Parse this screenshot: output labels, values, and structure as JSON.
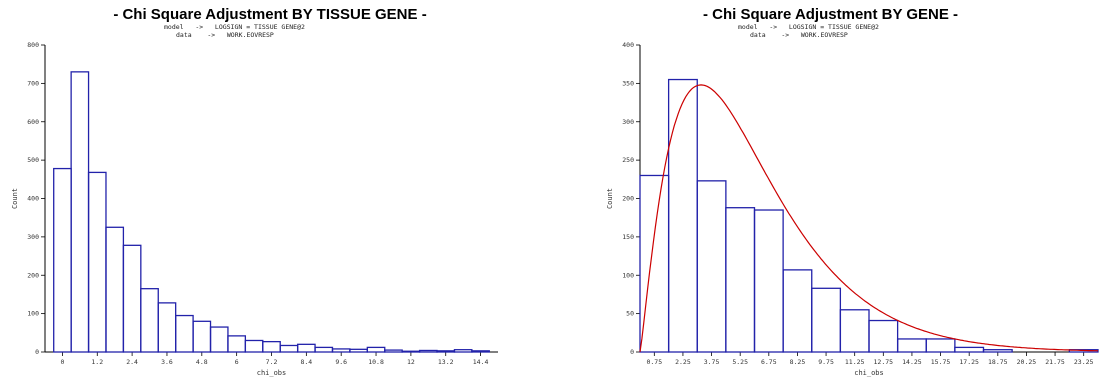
{
  "chart_data": [
    {
      "type": "bar",
      "title": "- Chi Square Adjustment BY TISSUE GENE -",
      "subtitle_lines": [
        {
          "key": "model",
          "arrow": "->",
          "value": "LOGSIGN = TISSUE GENE@2"
        },
        {
          "key": "data",
          "arrow": "->",
          "value": "WORK.EOVRESP"
        }
      ],
      "xlabel": "chi_obs",
      "ylabel": "Count",
      "ylim": [
        0,
        800
      ],
      "yticks": [
        0,
        100,
        200,
        300,
        400,
        500,
        600,
        700,
        800
      ],
      "xlim": [
        -0.6,
        15
      ],
      "xtick_values": [
        0,
        1.2,
        2.4,
        3.6,
        4.8,
        6,
        7.2,
        8.4,
        9.6,
        10.8,
        12,
        13.2,
        14.4
      ],
      "xtick_labels": [
        "0",
        "1.2",
        "2.4",
        "3.6",
        "4.8",
        "6",
        "7.2",
        "8.4",
        "9.6",
        "10.8",
        "12",
        "13.2",
        "14.4"
      ],
      "bin_width": 0.6,
      "bin_centers": [
        0,
        0.6,
        1.2,
        1.8,
        2.4,
        3.0,
        3.6,
        4.2,
        4.8,
        5.4,
        6.0,
        6.6,
        7.2,
        7.8,
        8.4,
        9.0,
        9.6,
        10.2,
        10.8,
        11.4,
        12.0,
        12.6,
        13.2,
        13.8,
        14.4
      ],
      "values": [
        478,
        730,
        468,
        325,
        278,
        165,
        128,
        95,
        80,
        65,
        42,
        30,
        27,
        17,
        20,
        12,
        8,
        7,
        12,
        5,
        2,
        4,
        3,
        6,
        3
      ],
      "grid": false,
      "bar_color": "#2222aa"
    },
    {
      "type": "bar",
      "title": "- Chi Square Adjustment BY GENE -",
      "subtitle_lines": [
        {
          "key": "model",
          "arrow": "->",
          "value": "LOGSIGN = TISSUE GENE@2"
        },
        {
          "key": "data",
          "arrow": "->",
          "value": "WORK.EOVRESP"
        }
      ],
      "xlabel": "chi_obs",
      "ylabel": "Count",
      "ylim": [
        0,
        400
      ],
      "yticks": [
        0,
        50,
        100,
        150,
        200,
        250,
        300,
        350,
        400
      ],
      "xlim": [
        0,
        24
      ],
      "xtick_values": [
        0.75,
        2.25,
        3.75,
        5.25,
        6.75,
        8.25,
        9.75,
        11.25,
        12.75,
        14.25,
        15.75,
        17.25,
        18.75,
        20.25,
        21.75,
        23.25
      ],
      "xtick_labels": [
        "0.75",
        "2.25",
        "3.75",
        "5.25",
        "6.75",
        "8.25",
        "9.75",
        "11.25",
        "12.75",
        "14.25",
        "15.75",
        "17.25",
        "18.75",
        "20.25",
        "21.75",
        "23.25"
      ],
      "bin_width": 1.5,
      "bin_centers": [
        0.75,
        2.25,
        3.75,
        5.25,
        6.75,
        8.25,
        9.75,
        11.25,
        12.75,
        14.25,
        15.75,
        17.25,
        18.75,
        20.25,
        21.75,
        23.25
      ],
      "values": [
        230,
        355,
        223,
        188,
        185,
        107,
        83,
        55,
        41,
        17,
        17,
        6,
        3,
        0,
        0,
        3
      ],
      "overlay_curve": {
        "type": "density",
        "peak_x": 3.2,
        "peak_y": 348,
        "color": "#cc0000"
      },
      "grid": false,
      "bar_color": "#2222aa"
    }
  ]
}
